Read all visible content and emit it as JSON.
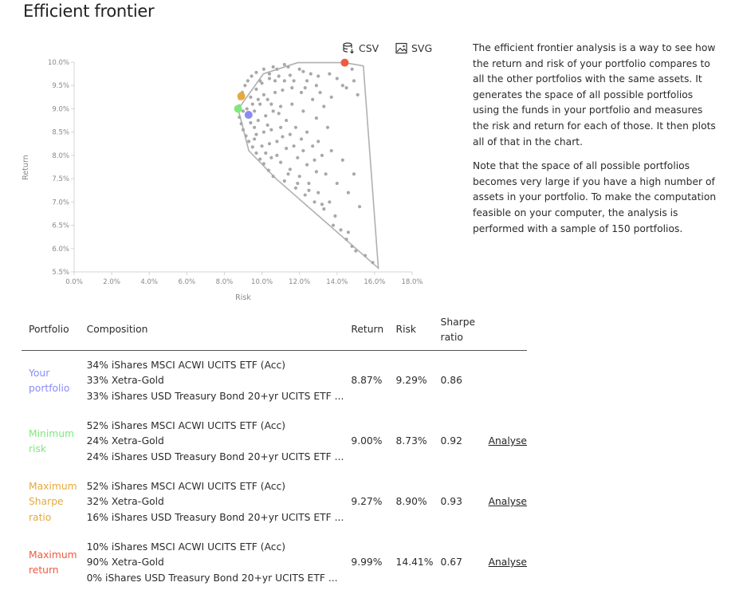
{
  "page": {
    "title": "Efficient frontier"
  },
  "exports": {
    "csv_label": "CSV",
    "svg_label": "SVG"
  },
  "chart_data": {
    "type": "scatter",
    "xlabel": "Risk",
    "ylabel": "Return",
    "xlim": [
      0,
      18
    ],
    "ylim": [
      5.5,
      10
    ],
    "xticks": [
      "0.0%",
      "2.0%",
      "4.0%",
      "6.0%",
      "8.0%",
      "10.0%",
      "12.0%",
      "14.0%",
      "16.0%",
      "18.0%"
    ],
    "yticks": [
      "5.5%",
      "6.0%",
      "6.5%",
      "7.0%",
      "7.5%",
      "8.0%",
      "8.5%",
      "9.0%",
      "9.5%",
      "10.0%"
    ],
    "grid": false,
    "hull": [
      [
        8.75,
        9.0
      ],
      [
        10.08,
        9.75
      ],
      [
        11.9,
        9.99
      ],
      [
        14.41,
        9.99
      ],
      [
        15.4,
        9.92
      ],
      [
        16.2,
        5.58
      ],
      [
        10.75,
        7.5
      ],
      [
        9.3,
        8.1
      ],
      [
        8.73,
        9.0
      ]
    ],
    "points": [
      [
        8.78,
        9.06
      ],
      [
        8.82,
        9.22
      ],
      [
        8.95,
        9.35
      ],
      [
        9.1,
        9.5
      ],
      [
        9.25,
        9.6
      ],
      [
        9.45,
        9.7
      ],
      [
        9.7,
        9.78
      ],
      [
        10.1,
        9.85
      ],
      [
        10.6,
        9.9
      ],
      [
        11.2,
        9.95
      ],
      [
        8.8,
        8.82
      ],
      [
        8.9,
        8.68
      ],
      [
        9.0,
        8.55
      ],
      [
        9.15,
        8.42
      ],
      [
        9.3,
        8.3
      ],
      [
        9.5,
        8.18
      ],
      [
        9.7,
        8.05
      ],
      [
        9.9,
        7.92
      ],
      [
        10.1,
        7.82
      ],
      [
        10.35,
        7.68
      ],
      [
        10.6,
        7.55
      ],
      [
        9.4,
        9.25
      ],
      [
        9.7,
        9.42
      ],
      [
        10.0,
        9.55
      ],
      [
        10.4,
        9.65
      ],
      [
        10.9,
        9.7
      ],
      [
        11.5,
        9.72
      ],
      [
        12.0,
        9.85
      ],
      [
        12.4,
        9.6
      ],
      [
        12.9,
        9.5
      ],
      [
        9.6,
        8.95
      ],
      [
        9.9,
        9.1
      ],
      [
        10.3,
        9.2
      ],
      [
        10.7,
        9.35
      ],
      [
        11.1,
        9.4
      ],
      [
        11.6,
        9.45
      ],
      [
        12.1,
        9.35
      ],
      [
        12.7,
        9.2
      ],
      [
        13.3,
        9.05
      ],
      [
        9.4,
        8.7
      ],
      [
        9.8,
        8.75
      ],
      [
        10.2,
        8.85
      ],
      [
        10.6,
        8.95
      ],
      [
        11.0,
        9.05
      ],
      [
        11.6,
        9.1
      ],
      [
        12.2,
        8.95
      ],
      [
        12.9,
        8.8
      ],
      [
        13.5,
        8.6
      ],
      [
        9.7,
        8.45
      ],
      [
        10.1,
        8.5
      ],
      [
        10.5,
        8.55
      ],
      [
        11.0,
        8.6
      ],
      [
        11.5,
        8.45
      ],
      [
        12.1,
        8.35
      ],
      [
        12.7,
        8.2
      ],
      [
        13.2,
        8.0
      ],
      [
        10.0,
        8.2
      ],
      [
        10.4,
        8.25
      ],
      [
        10.8,
        8.3
      ],
      [
        11.3,
        8.15
      ],
      [
        11.9,
        7.95
      ],
      [
        12.4,
        7.8
      ],
      [
        12.9,
        7.65
      ],
      [
        10.5,
        7.95
      ],
      [
        11.0,
        7.85
      ],
      [
        11.5,
        7.7
      ],
      [
        12.0,
        7.55
      ],
      [
        12.5,
        7.4
      ],
      [
        13.0,
        7.2
      ],
      [
        13.6,
        7.0
      ],
      [
        11.2,
        7.45
      ],
      [
        11.8,
        7.3
      ],
      [
        12.3,
        7.15
      ],
      [
        12.8,
        7.0
      ],
      [
        13.3,
        6.85
      ],
      [
        13.9,
        6.7
      ],
      [
        14.2,
        6.4
      ],
      [
        14.5,
        6.2
      ],
      [
        14.8,
        6.05
      ],
      [
        15.0,
        5.95
      ],
      [
        15.5,
        5.85
      ],
      [
        15.9,
        5.7
      ],
      [
        13.0,
        9.7
      ],
      [
        13.6,
        9.75
      ],
      [
        14.0,
        9.65
      ],
      [
        14.5,
        9.45
      ],
      [
        14.9,
        9.6
      ],
      [
        15.1,
        9.3
      ],
      [
        12.2,
        9.8
      ],
      [
        12.6,
        9.75
      ],
      [
        11.4,
        9.9
      ],
      [
        10.8,
        9.85
      ],
      [
        9.2,
        9.0
      ],
      [
        9.5,
        9.1
      ],
      [
        9.8,
        9.2
      ],
      [
        10.1,
        9.3
      ],
      [
        10.5,
        9.1
      ],
      [
        10.9,
        8.9
      ],
      [
        11.3,
        8.75
      ],
      [
        11.8,
        8.6
      ],
      [
        12.4,
        8.5
      ],
      [
        13.0,
        8.3
      ],
      [
        13.7,
        8.1
      ],
      [
        14.3,
        7.9
      ],
      [
        14.9,
        7.6
      ],
      [
        9.0,
        8.95
      ],
      [
        9.6,
        8.6
      ],
      [
        10.2,
        8.05
      ],
      [
        10.8,
        8.0
      ],
      [
        11.4,
        7.6
      ],
      [
        11.9,
        7.4
      ],
      [
        12.5,
        7.25
      ],
      [
        13.2,
        6.95
      ],
      [
        13.8,
        6.5
      ],
      [
        14.6,
        6.35
      ],
      [
        9.9,
        9.6
      ],
      [
        10.4,
        9.75
      ],
      [
        10.7,
        9.6
      ],
      [
        11.2,
        9.6
      ],
      [
        11.7,
        9.6
      ],
      [
        12.3,
        9.45
      ],
      [
        13.1,
        9.35
      ],
      [
        13.7,
        9.25
      ],
      [
        14.3,
        9.5
      ],
      [
        14.8,
        9.85
      ],
      [
        9.3,
        8.85
      ],
      [
        9.6,
        8.35
      ],
      [
        10.3,
        8.65
      ],
      [
        11.1,
        8.4
      ],
      [
        11.7,
        8.2
      ],
      [
        12.2,
        8.1
      ],
      [
        12.8,
        7.9
      ],
      [
        13.4,
        7.6
      ],
      [
        14.0,
        7.4
      ],
      [
        14.6,
        7.2
      ],
      [
        15.2,
        6.9
      ]
    ],
    "highlights": [
      {
        "name": "Your portfolio",
        "risk": 9.29,
        "return": 8.87,
        "color": "#8a8cf5"
      },
      {
        "name": "Minimum risk",
        "risk": 8.73,
        "return": 9.0,
        "color": "#7ee87e"
      },
      {
        "name": "Maximum Sharpe ratio",
        "risk": 8.9,
        "return": 9.27,
        "color": "#e6a93a"
      },
      {
        "name": "Maximum return",
        "risk": 14.41,
        "return": 9.99,
        "color": "#ef5a40"
      }
    ]
  },
  "description": {
    "p1": "The efficient frontier analysis is a way to see how the return and risk of your portfolio compares to all the other portfolios with the same assets. It generates the space of all possible portfolios using the funds in your portfolio and measures the risk and return for each of those. It then plots all of that in the chart.",
    "p2": "Note that the space of all possible portfolios becomes very large if you have a high number of assets in your portfolio. To make the computation feasible on your computer, the analysis is performed with a sample of 150 portfolios."
  },
  "table": {
    "headers": {
      "portfolio": "Portfolio",
      "composition": "Composition",
      "return": "Return",
      "risk": "Risk",
      "sharpe_line1": "Sharpe",
      "sharpe_line2": "ratio"
    },
    "rows": [
      {
        "name_line1": "Your",
        "name_line2": "portfolio",
        "name_line3": "",
        "color": "#8a8cf5",
        "comp1": "34% iShares MSCI ACWI UCITS ETF (Acc)",
        "comp2": "33% Xetra-Gold",
        "comp3": "33% iShares USD Treasury Bond 20+yr UCITS ETF ...",
        "ret": "8.87%",
        "risk": "9.29%",
        "sharpe": "0.86",
        "action": ""
      },
      {
        "name_line1": "Minimum",
        "name_line2": "risk",
        "name_line3": "",
        "color": "#7ee87e",
        "comp1": "52% iShares MSCI ACWI UCITS ETF (Acc)",
        "comp2": "24% Xetra-Gold",
        "comp3": "24% iShares USD Treasury Bond 20+yr UCITS ETF ...",
        "ret": "9.00%",
        "risk": "8.73%",
        "sharpe": "0.92",
        "action": "Analyse"
      },
      {
        "name_line1": "Maximum",
        "name_line2": "Sharpe",
        "name_line3": "ratio",
        "color": "#e6a93a",
        "comp1": "52% iShares MSCI ACWI UCITS ETF (Acc)",
        "comp2": "32% Xetra-Gold",
        "comp3": "16% iShares USD Treasury Bond 20+yr UCITS ETF ...",
        "ret": "9.27%",
        "risk": "8.90%",
        "sharpe": "0.93",
        "action": "Analyse"
      },
      {
        "name_line1": "Maximum",
        "name_line2": "return",
        "name_line3": "",
        "color": "#ef5a40",
        "comp1": "10% iShares MSCI ACWI UCITS ETF (Acc)",
        "comp2": "90% Xetra-Gold",
        "comp3": "0% iShares USD Treasury Bond 20+yr UCITS ETF ...",
        "ret": "9.99%",
        "risk": "14.41%",
        "sharpe": "0.67",
        "action": "Analyse"
      }
    ]
  }
}
